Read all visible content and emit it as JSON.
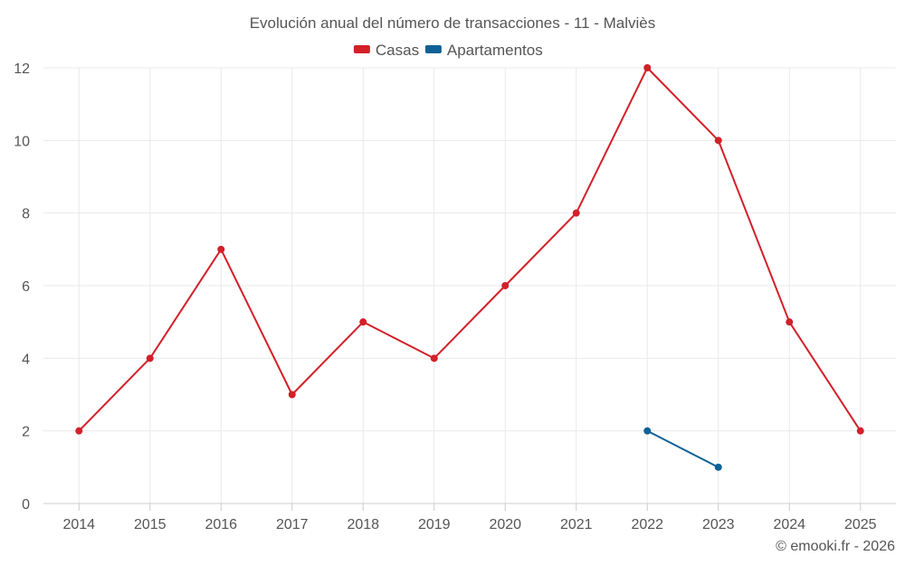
{
  "chart_data": {
    "type": "line",
    "title": "Evolución anual del número de transacciones - 11 - Malviès",
    "categories": [
      "2014",
      "2015",
      "2016",
      "2017",
      "2018",
      "2019",
      "2020",
      "2021",
      "2022",
      "2023",
      "2024",
      "2025"
    ],
    "series": [
      {
        "name": "Casas",
        "color": "#d32029",
        "values": [
          2,
          4,
          7,
          3,
          5,
          4,
          6,
          8,
          12,
          10,
          5,
          2
        ]
      },
      {
        "name": "Apartamentos",
        "color": "#0e6197",
        "values": [
          null,
          null,
          null,
          null,
          null,
          null,
          null,
          null,
          2,
          1,
          null,
          null
        ]
      }
    ],
    "y_ticks": [
      "0",
      "2",
      "4",
      "6",
      "8",
      "10",
      "12"
    ],
    "ylim": [
      0,
      12
    ],
    "legend_position": "top-center",
    "grid": true
  },
  "credit": "© emooki.fr - 2026"
}
